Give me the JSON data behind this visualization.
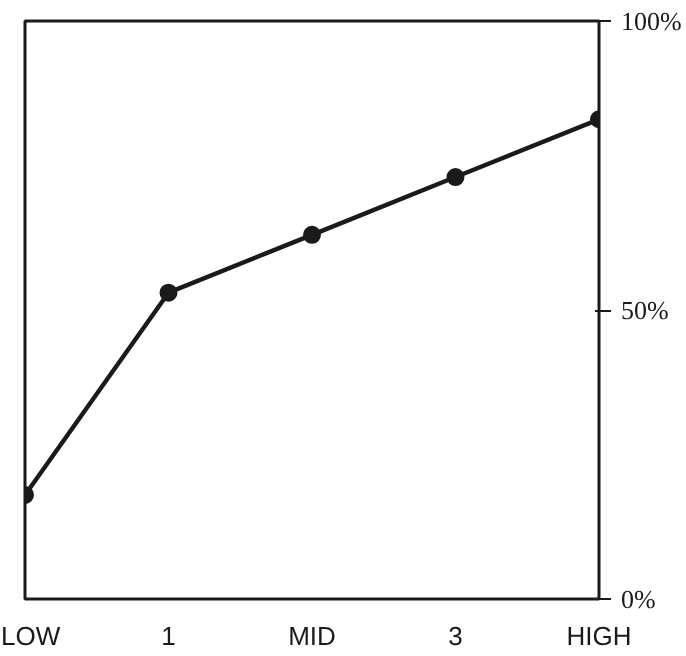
{
  "chart_data": {
    "type": "line",
    "categories": [
      "LOW",
      "1",
      "MID",
      "3",
      "HIGH"
    ],
    "series": [
      {
        "color": "#1a1a1a",
        "values": [
          18,
          53,
          63,
          73,
          83
        ]
      }
    ],
    "ylim": [
      0,
      100
    ],
    "yticks": [
      {
        "value": 0,
        "label": "0%"
      },
      {
        "value": 50,
        "label": "50%"
      },
      {
        "value": 100,
        "label": "100%"
      }
    ],
    "marker": "circle",
    "line_style": "solid",
    "grid": false
  }
}
